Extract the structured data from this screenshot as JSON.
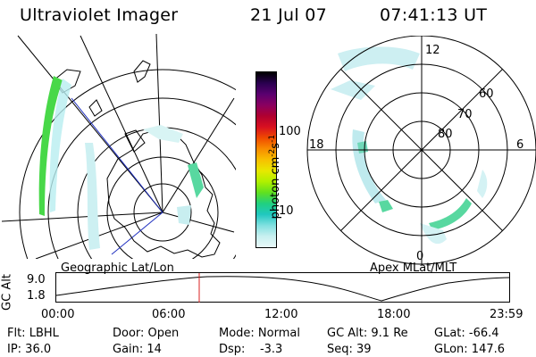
{
  "header": {
    "title": "Ultraviolet Imager",
    "date": "21 Jul 07",
    "time": "07:41:13 UT"
  },
  "geo_panel": {
    "label": "Geographic Lat/Lon"
  },
  "apex_panel": {
    "label": "Apex MLat/MLT",
    "mlt_labels": {
      "top": "12",
      "left": "18",
      "right": "6",
      "bottom": "0"
    },
    "mlat_labels": [
      "60",
      "70",
      "80"
    ]
  },
  "colorbar": {
    "unit": "photon cm",
    "unit_exp1": "-2",
    "unit_mid": "s",
    "unit_exp2": "-1",
    "ticks": [
      "100",
      "10"
    ],
    "colors": [
      "#000000",
      "#2a0050",
      "#5a0070",
      "#8a0060",
      "#b00030",
      "#d81020",
      "#f04a00",
      "#f88c00",
      "#f8c000",
      "#e8e800",
      "#b0f000",
      "#60e020",
      "#20d080",
      "#20c8c0",
      "#80e0e0",
      "#c8f0f0",
      "#e8f8f8"
    ]
  },
  "altitude_plot": {
    "axis_label": "GC Alt",
    "y_ticks": [
      "9.0",
      "1.8"
    ],
    "x_ticks": [
      "00:00",
      "06:00",
      "12:00",
      "18:00",
      "23:59"
    ],
    "current_time_marker": "07:41",
    "marker_color": "#d82020"
  },
  "status": {
    "flt": "Flt: LBHL",
    "ip": "IP: 36.0",
    "door": "Door: Open",
    "gain": "Gain: 14",
    "mode": "Mode: Normal",
    "dsp": "Dsp:    -3.3",
    "gc_alt": "GC Alt: 9.1 Re",
    "seq": "Seq: 39",
    "glat": "GLat: -66.4",
    "glon": "GLon: 147.6"
  }
}
